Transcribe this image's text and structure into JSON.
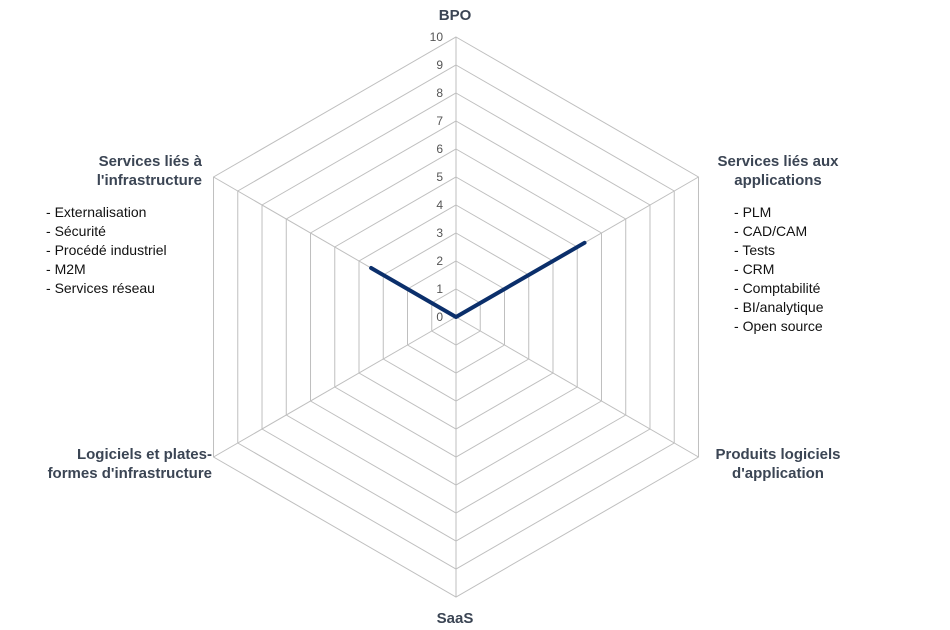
{
  "chart_data": {
    "type": "radar",
    "title": "",
    "axes": [
      "BPO",
      "Services liés aux\napplications",
      "Produits logiciels\nd'application",
      "SaaS",
      "Logiciels et plates-\nformes d'infrastructure",
      "Services liés à\nl'infrastructure"
    ],
    "rlim": [
      0,
      10
    ],
    "ticks": [
      "0",
      "1",
      "2",
      "3",
      "4",
      "5",
      "6",
      "7",
      "8",
      "9",
      "10"
    ],
    "grid": true,
    "series": [
      {
        "values": [
          0,
          5.3,
          0,
          0,
          0,
          3.5
        ]
      }
    ],
    "colors": {
      "series": "#0b2f6b",
      "grid": "#bfbfbf",
      "axis_text": "#3b4554"
    }
  },
  "annotations": {
    "applications_list": [
      "PLM",
      "CAD/CAM",
      "Tests",
      "CRM",
      "Comptabilité",
      "BI/analytique",
      "Open source"
    ],
    "infrastructure_list": [
      "Externalisation",
      "Sécurité",
      "Procédé industriel",
      "M2M",
      "Services réseau"
    ]
  }
}
